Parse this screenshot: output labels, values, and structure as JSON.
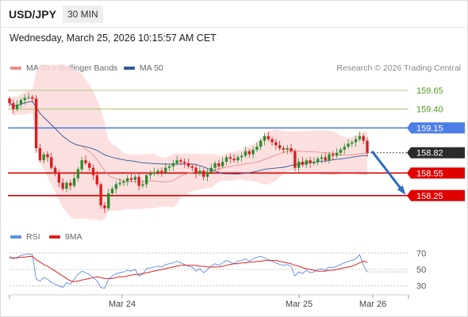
{
  "header": {
    "symbol": "USD/JPY",
    "timeframe": "30 MIN",
    "datetime": "Wednesday, March 25, 2026 10:15:57 AM CET"
  },
  "legend": {
    "ma20": {
      "label": "MA 20 + Bollinger Bands",
      "color": "#ef8b8b"
    },
    "ma50": {
      "label": "MA 50",
      "color": "#2f5a9c"
    },
    "credit": "Research © 2026 Trading Central"
  },
  "rsi_legend": {
    "rsi": {
      "label": "RSI",
      "color": "#5b8ee0"
    },
    "ma9": {
      "label": "9MA",
      "color": "#e02020"
    }
  },
  "colors": {
    "up": "#2e8b2e",
    "down": "#d81e1e",
    "bollinger": "#fbdada",
    "resistance": "#8fbf5a",
    "pivot": "#4d7ee8",
    "support": "#e00000",
    "forecast": "#2c6bbf"
  },
  "chart_data": [
    {
      "type": "candlestick",
      "title": "USD/JPY 30 MIN",
      "x_ticks": [
        "Mar 24",
        "Mar 25",
        "Mar 26"
      ],
      "ylim": [
        157.9,
        159.85
      ],
      "levels": [
        {
          "label": "159.65",
          "value": 159.65,
          "kind": "resistance"
        },
        {
          "label": "159.40",
          "value": 159.4,
          "kind": "resistance"
        },
        {
          "label": "159.15",
          "value": 159.15,
          "kind": "pivot"
        },
        {
          "label": "158.82",
          "value": 158.82,
          "kind": "last"
        },
        {
          "label": "158.55",
          "value": 158.55,
          "kind": "support"
        },
        {
          "label": "158.25",
          "value": 158.25,
          "kind": "support"
        }
      ],
      "forecast": {
        "from": 158.84,
        "to": 158.25,
        "direction": "down"
      },
      "candle_close": [
        159.48,
        159.4,
        159.46,
        159.52,
        159.55,
        159.56,
        159.54,
        158.88,
        158.72,
        158.8,
        158.76,
        158.62,
        158.55,
        158.42,
        158.34,
        158.42,
        158.38,
        158.48,
        158.6,
        158.72,
        158.68,
        158.62,
        158.52,
        158.4,
        158.12,
        158.08,
        158.28,
        158.34,
        158.4,
        158.42,
        158.44,
        158.48,
        158.46,
        158.5,
        158.38,
        158.4,
        158.52,
        158.54,
        158.56,
        158.58,
        158.56,
        158.62,
        158.64,
        158.68,
        158.72,
        158.7,
        158.68,
        158.64,
        158.62,
        158.54,
        158.58,
        158.5,
        158.56,
        158.62,
        158.68,
        158.64,
        158.7,
        158.76,
        158.74,
        158.72,
        158.76,
        158.78,
        158.84,
        158.8,
        158.86,
        158.9,
        158.98,
        159.04,
        159.0,
        158.96,
        158.92,
        158.88,
        158.86,
        158.88,
        158.84,
        158.62,
        158.7,
        158.66,
        158.72,
        158.68,
        158.7,
        158.74,
        158.76,
        158.72,
        158.8,
        158.78,
        158.82,
        158.86,
        158.9,
        158.94,
        158.96,
        159.0,
        159.04,
        158.98,
        158.82
      ]
    },
    {
      "type": "line",
      "title": "RSI",
      "yticks": [
        30,
        50,
        70
      ],
      "ylim": [
        20,
        80
      ],
      "series": [
        {
          "name": "RSI",
          "values": [
            66,
            63,
            65,
            67,
            68,
            69,
            68,
            38,
            36,
            40,
            38,
            34,
            32,
            30,
            28,
            34,
            32,
            38,
            44,
            48,
            46,
            44,
            40,
            36,
            28,
            27,
            38,
            42,
            45,
            46,
            47,
            49,
            48,
            50,
            42,
            44,
            51,
            52,
            53,
            54,
            53,
            56,
            57,
            58,
            60,
            58,
            56,
            54,
            53,
            48,
            51,
            46,
            50,
            54,
            57,
            55,
            58,
            61,
            59,
            57,
            60,
            61,
            63,
            60,
            63,
            65,
            66,
            64,
            62,
            60,
            58,
            56,
            55,
            56,
            54,
            42,
            47,
            45,
            49,
            46,
            47,
            50,
            51,
            49,
            53,
            52,
            54,
            56,
            58,
            60,
            61,
            63,
            68,
            55,
            47
          ]
        },
        {
          "name": "9MA",
          "values": [
            64,
            64,
            64,
            65,
            65,
            66,
            66,
            62,
            59,
            56,
            54,
            51,
            48,
            45,
            42,
            39,
            36,
            35,
            36,
            37,
            38,
            39,
            40,
            41,
            40,
            39,
            39,
            39,
            40,
            41,
            41,
            42,
            43,
            44,
            44,
            45,
            46,
            47,
            48,
            49,
            50,
            51,
            52,
            53,
            54,
            55,
            55,
            55,
            55,
            55,
            54,
            54,
            53,
            53,
            53,
            53,
            54,
            55,
            56,
            57,
            57,
            58,
            58,
            59,
            59,
            60,
            60,
            61,
            61,
            61,
            61,
            60,
            59,
            58,
            57,
            55,
            54,
            52,
            51,
            50,
            49,
            48,
            48,
            48,
            49,
            49,
            50,
            51,
            52,
            53,
            54,
            56,
            58,
            60,
            59
          ]
        }
      ]
    }
  ]
}
